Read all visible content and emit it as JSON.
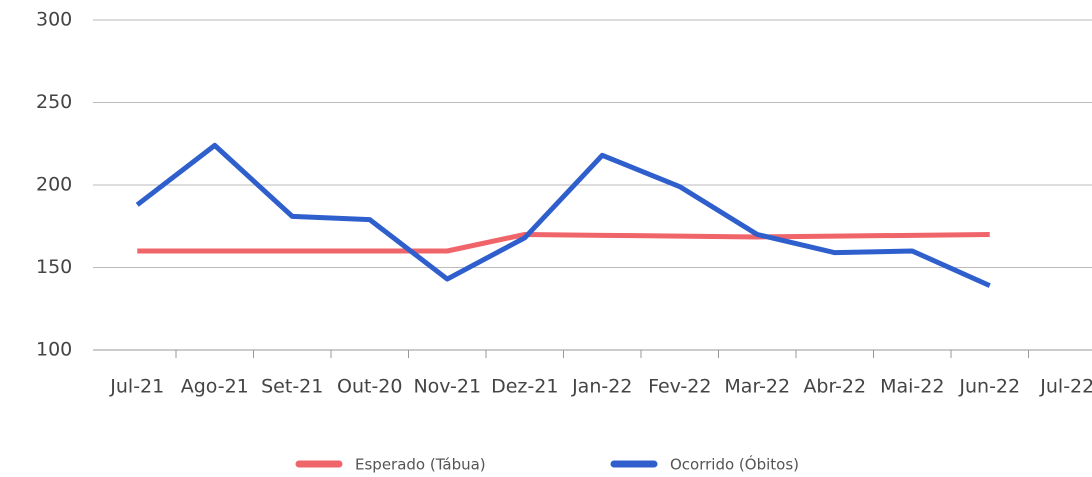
{
  "chart_data": {
    "type": "line",
    "categories": [
      "Jul-21",
      "Ago-21",
      "Set-21",
      "Out-20",
      "Nov-21",
      "Dez-21",
      "Jan-22",
      "Fev-22",
      "Mar-22",
      "Abr-22",
      "Mai-22",
      "Jun-22",
      "Jul-22"
    ],
    "series": [
      {
        "name": "Esperado (Tábua)",
        "color": "#f0656a",
        "values": [
          160,
          160,
          160,
          160,
          160,
          170,
          169.5,
          169,
          168.5,
          169,
          169.5,
          170,
          null
        ]
      },
      {
        "name": "Ocorrido (Óbitos)",
        "color": "#2f5fcc",
        "values": [
          188,
          224,
          181,
          179,
          143,
          168,
          218,
          199,
          170,
          159,
          160,
          139,
          null
        ]
      }
    ],
    "ylim": [
      100,
      300
    ],
    "yticks": [
      100,
      150,
      200,
      250,
      300
    ],
    "grid": true,
    "legend": "bottom"
  }
}
